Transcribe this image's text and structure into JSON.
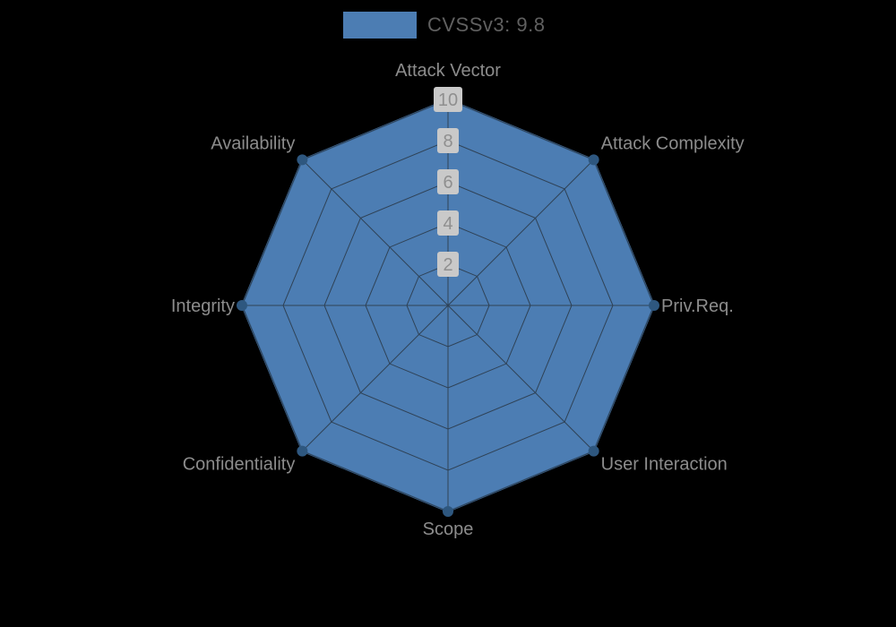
{
  "page": {
    "background": "#000000"
  },
  "legend": {
    "label": "CVSSv3: 9.8"
  },
  "chart_data": {
    "type": "radar",
    "legend": [
      "CVSSv3: 9.8"
    ],
    "indicators": [
      "Attack Vector",
      "Attack Complexity",
      "Priv.Req.",
      "User Interaction",
      "Scope",
      "Confidentiality",
      "Integrity",
      "Availability"
    ],
    "axis_min": 0,
    "axis_max": 10,
    "tick_labels": [
      "2",
      "4",
      "6",
      "8",
      "10"
    ],
    "tick_values": [
      2,
      4,
      6,
      8,
      10
    ],
    "series": [
      {
        "name": "CVSSv3: 9.8",
        "values": [
          10,
          10,
          10,
          10,
          10,
          10,
          10,
          10
        ]
      }
    ],
    "grid": "octagon-rings-and-spokes",
    "legend_position": "top-center",
    "colors": {
      "fill": "#4c7db3",
      "stroke": "#3c6898",
      "vertex_dot": "#2e577f",
      "grid_line": "#2f4256",
      "axis_label": "#8c8c8c",
      "tick_text": "#8f8f8f",
      "tick_bg": "#c9c9c9",
      "swatch": "#4c7db3"
    }
  }
}
